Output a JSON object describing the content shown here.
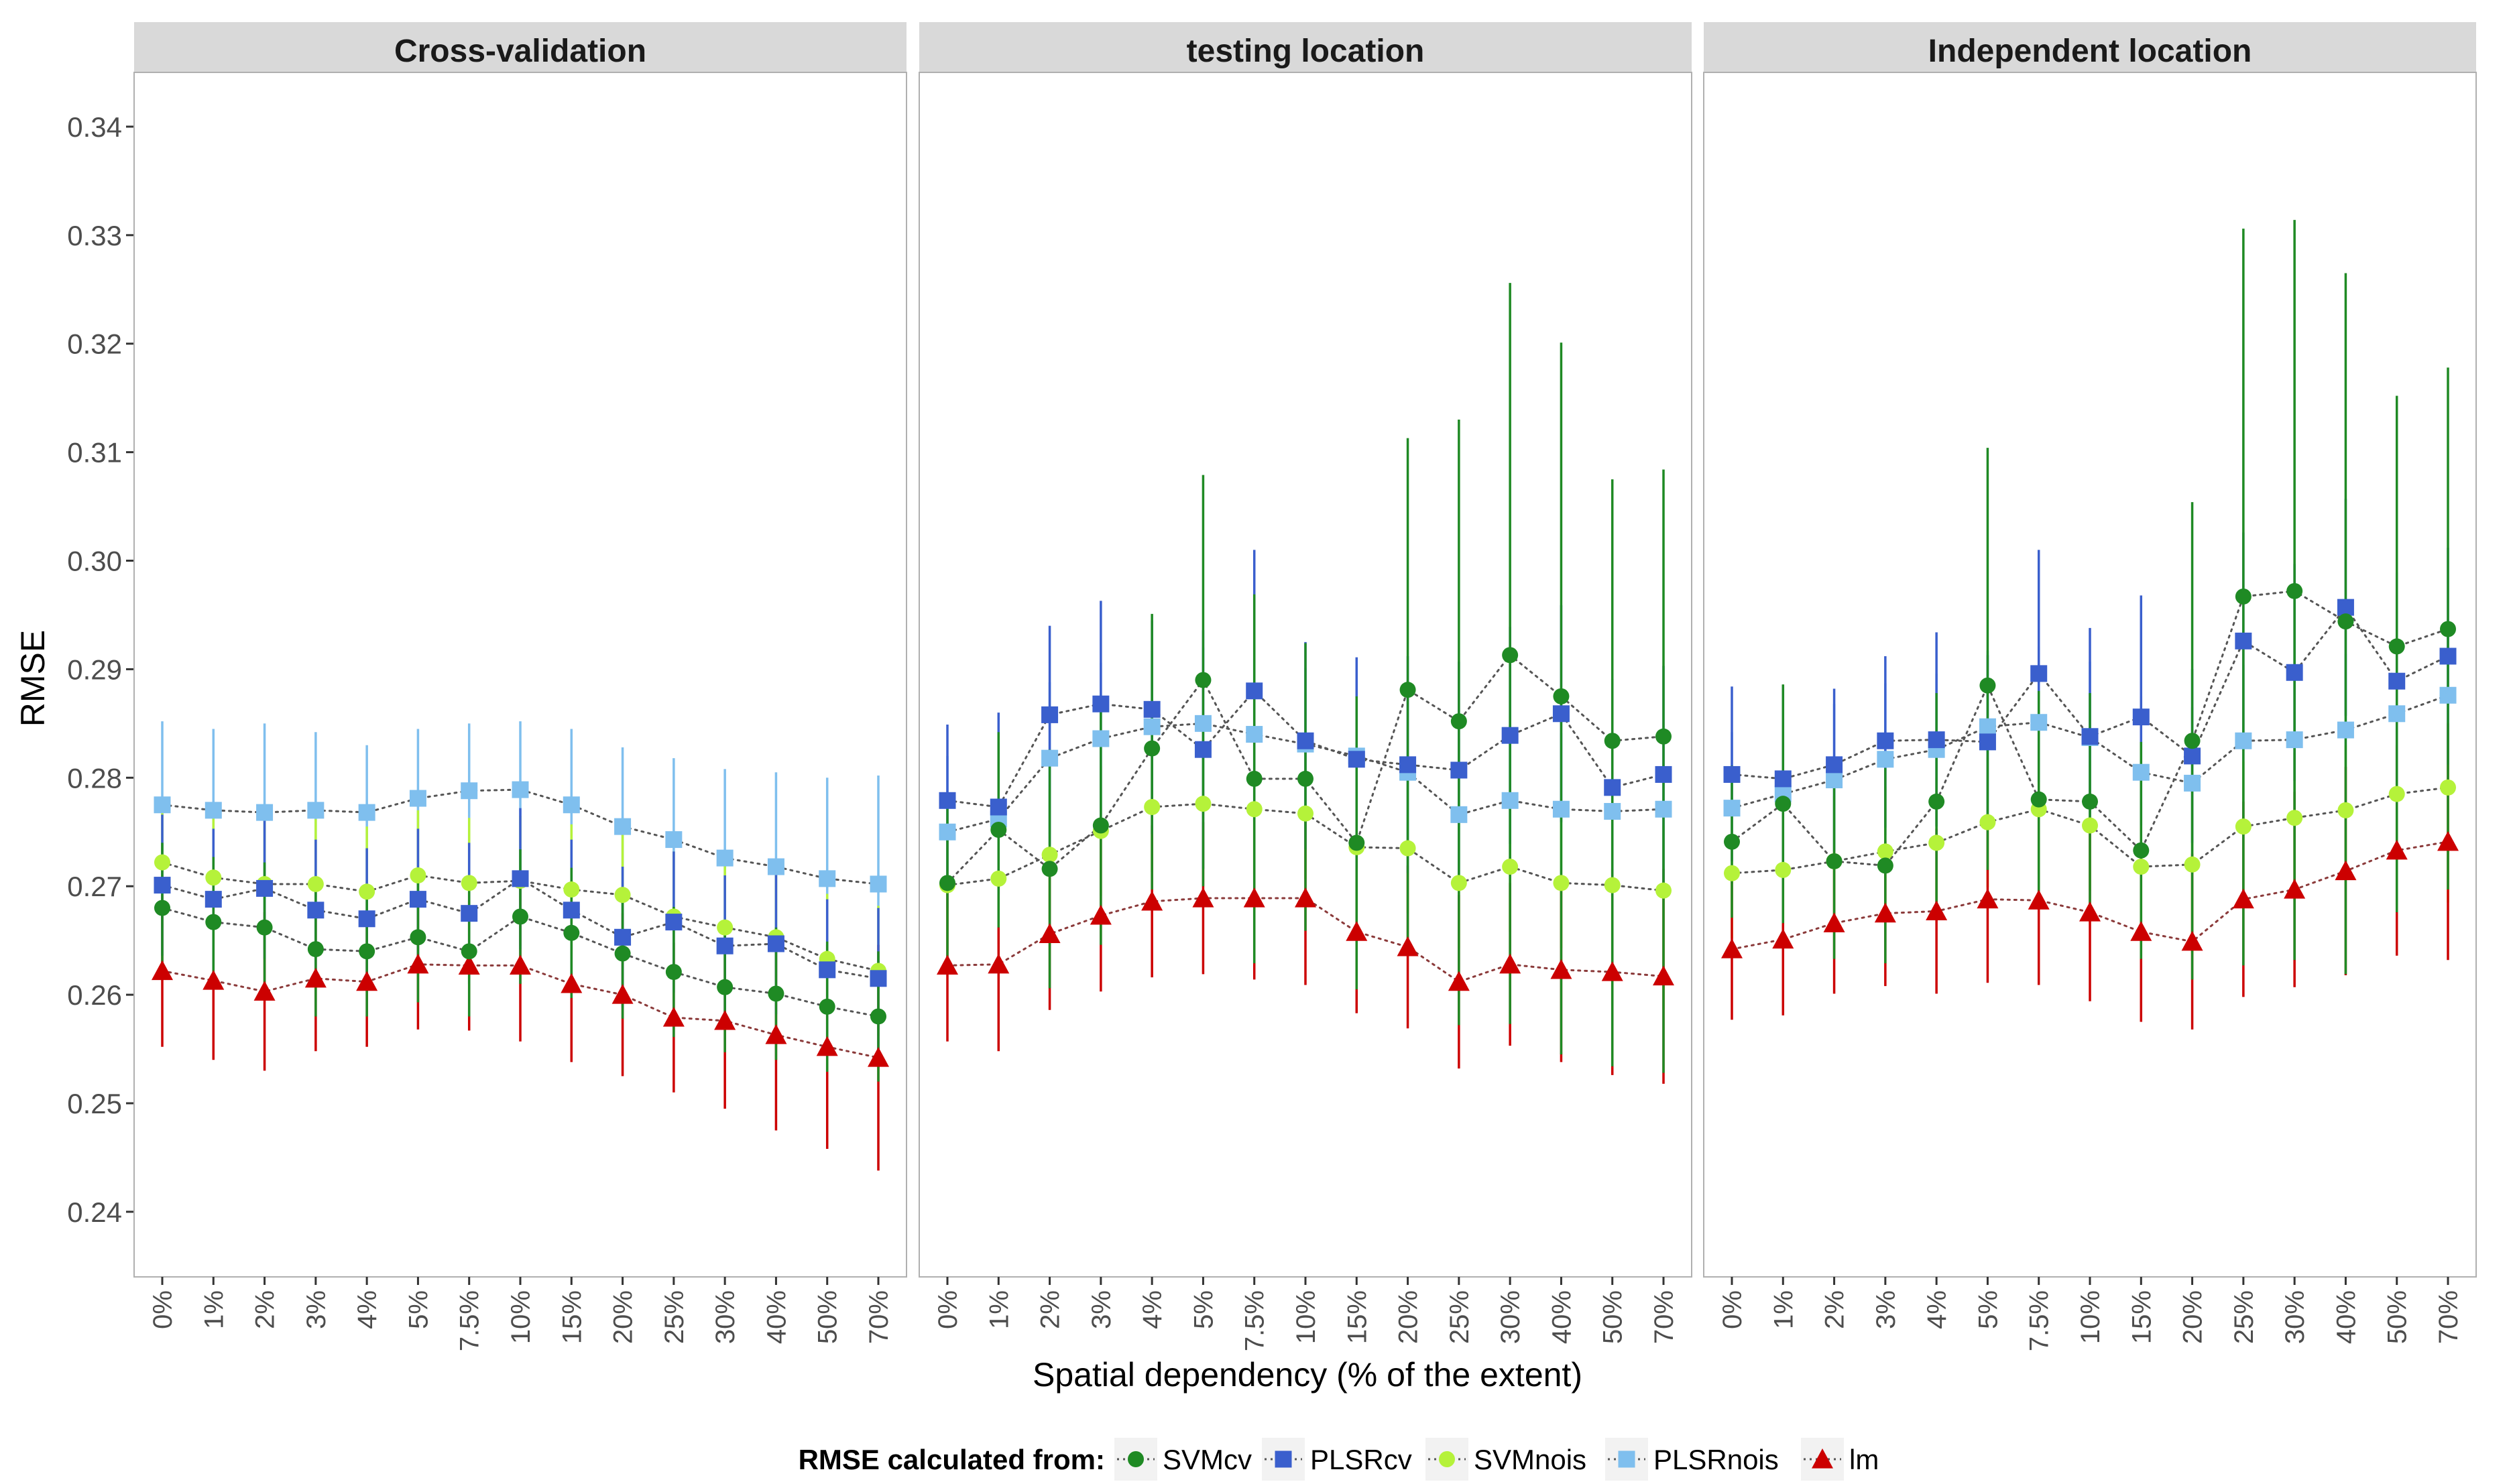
{
  "chart_data": {
    "type": "line",
    "ylabel": "RMSE",
    "xlabel": "Spatial dependency (% of the extent)",
    "ylim": [
      0.234,
      0.345
    ],
    "yticks": [
      "0.24",
      "0.25",
      "0.26",
      "0.27",
      "0.28",
      "0.29",
      "0.30",
      "0.31",
      "0.32",
      "0.33",
      "0.34"
    ],
    "ytick_values": [
      0.24,
      0.25,
      0.26,
      0.27,
      0.28,
      0.29,
      0.3,
      0.31,
      0.32,
      0.33,
      0.34
    ],
    "categories": [
      "0%",
      "1%",
      "2%",
      "3%",
      "4%",
      "5%",
      "7.5%",
      "10%",
      "15%",
      "20%",
      "25%",
      "30%",
      "40%",
      "50%",
      "70%"
    ],
    "legend": {
      "title": "RMSE calculated from:",
      "position": "bottom",
      "entries": [
        "SVMcv",
        "PLSRcv",
        "SVMnois",
        "PLSRnois",
        "lm"
      ]
    },
    "colors": {
      "SVMcv": "#1f8a24",
      "PLSRcv": "#3a5fcd",
      "SVMnois": "#b5f23a",
      "PLSRnois": "#7fbfee",
      "lm": "#cc0000",
      "strip_bg": "#d9d9d9",
      "panel_border": "#b0b0b0",
      "connector": "#555555"
    },
    "panels": [
      {
        "title": "Cross-validation",
        "series": [
          {
            "name": "SVMcv",
            "marker": "circle",
            "values": [
              0.268,
              0.2667,
              0.2662,
              0.2642,
              0.264,
              0.2653,
              0.264,
              0.2672,
              0.2657,
              0.2638,
              0.2621,
              0.2607,
              0.2601,
              0.2589,
              0.258
            ],
            "lower": [
              0.262,
              0.2605,
              0.2602,
              0.258,
              0.258,
              0.2593,
              0.258,
              0.261,
              0.2597,
              0.2578,
              0.2561,
              0.2547,
              0.254,
              0.2529,
              0.252
            ],
            "upper": [
              0.274,
              0.2727,
              0.2722,
              0.2704,
              0.27,
              0.2713,
              0.27,
              0.2734,
              0.2717,
              0.2698,
              0.2681,
              0.2667,
              0.2662,
              0.2649,
              0.264
            ]
          },
          {
            "name": "PLSRcv",
            "marker": "square",
            "values": [
              0.2701,
              0.2688,
              0.2698,
              0.2678,
              0.267,
              0.2688,
              0.2675,
              0.2707,
              0.2678,
              0.2653,
              0.2667,
              0.2645,
              0.2647,
              0.2623,
              0.2615
            ],
            "lower": [
              0.2636,
              0.2623,
              0.2633,
              0.2613,
              0.2605,
              0.2623,
              0.261,
              0.2642,
              0.2613,
              0.2588,
              0.2602,
              0.258,
              0.2582,
              0.2558,
              0.255
            ],
            "upper": [
              0.2766,
              0.2753,
              0.2763,
              0.2743,
              0.2735,
              0.2753,
              0.274,
              0.2772,
              0.2743,
              0.2718,
              0.2732,
              0.271,
              0.2712,
              0.2688,
              0.268
            ]
          },
          {
            "name": "SVMnois",
            "marker": "circle",
            "values": [
              0.2722,
              0.2708,
              0.2702,
              0.2702,
              0.2695,
              0.271,
              0.2703,
              0.2705,
              0.2697,
              0.2692,
              0.2672,
              0.2662,
              0.2653,
              0.2633,
              0.2622
            ],
            "lower": [
              0.2662,
              0.2648,
              0.2642,
              0.2642,
              0.2635,
              0.265,
              0.2643,
              0.2645,
              0.2637,
              0.2632,
              0.2612,
              0.2602,
              0.2593,
              0.2573,
              0.2562
            ],
            "upper": [
              0.2782,
              0.2768,
              0.2762,
              0.2762,
              0.2755,
              0.277,
              0.2763,
              0.2765,
              0.2757,
              0.2752,
              0.2732,
              0.2722,
              0.2713,
              0.2693,
              0.2682
            ]
          },
          {
            "name": "PLSRnois",
            "marker": "square",
            "values": [
              0.2775,
              0.277,
              0.2768,
              0.277,
              0.2768,
              0.2781,
              0.2788,
              0.2789,
              0.2775,
              0.2755,
              0.2743,
              0.2726,
              0.2718,
              0.2707,
              0.2702
            ],
            "lower": [
              0.2695,
              0.269,
              0.2688,
              0.269,
              0.2688,
              0.2701,
              0.2708,
              0.2709,
              0.2695,
              0.2675,
              0.2663,
              0.2646,
              0.2638,
              0.2627,
              0.2622
            ],
            "upper": [
              0.2852,
              0.2845,
              0.285,
              0.2842,
              0.283,
              0.2845,
              0.285,
              0.2852,
              0.2845,
              0.2828,
              0.2818,
              0.2808,
              0.2805,
              0.28,
              0.2802
            ]
          },
          {
            "name": "lm",
            "marker": "triangle",
            "values": [
              0.2622,
              0.2613,
              0.2603,
              0.2615,
              0.2612,
              0.2628,
              0.2627,
              0.2627,
              0.261,
              0.26,
              0.2579,
              0.2576,
              0.2563,
              0.2552,
              0.2542
            ],
            "lower": [
              0.2552,
              0.254,
              0.253,
              0.2548,
              0.2552,
              0.2568,
              0.2567,
              0.2557,
              0.2538,
              0.2525,
              0.251,
              0.2495,
              0.2475,
              0.2458,
              0.2438
            ],
            "upper": [
              0.2692,
              0.2686,
              0.2676,
              0.2682,
              0.2672,
              0.2688,
              0.2687,
              0.2697,
              0.2682,
              0.2675,
              0.2648,
              0.2657,
              0.2651,
              0.2646,
              0.2646
            ]
          }
        ]
      },
      {
        "title": "testing location",
        "series": [
          {
            "name": "SVMcv",
            "marker": "circle",
            "values": [
              0.2703,
              0.2752,
              0.2716,
              0.2756,
              0.2827,
              0.289,
              0.2799,
              0.2799,
              0.274,
              0.2881,
              0.2852,
              0.2913,
              0.2875,
              0.2834,
              0.2838
            ],
            "lower": [
              0.2633,
              0.2662,
              0.2606,
              0.2646,
              0.2697,
              0.27,
              0.2629,
              0.2659,
              0.2605,
              0.2651,
              0.2572,
              0.2573,
              0.2545,
              0.2534,
              0.2528
            ],
            "upper": [
              0.2773,
              0.2842,
              0.2826,
              0.2866,
              0.2951,
              0.3079,
              0.2969,
              0.2924,
              0.2875,
              0.3113,
              0.313,
              0.3256,
              0.3201,
              0.3075,
              0.3084
            ]
          },
          {
            "name": "PLSRcv",
            "marker": "square",
            "values": [
              0.2779,
              0.2773,
              0.2858,
              0.2868,
              0.2863,
              0.2826,
              0.288,
              0.2834,
              0.2817,
              0.2812,
              0.2807,
              0.2839,
              0.2859,
              0.2791,
              0.2803
            ],
            "lower": [
              0.2709,
              0.2693,
              0.2738,
              0.2748,
              0.2748,
              0.2716,
              0.276,
              0.2734,
              0.2717,
              0.2712,
              0.2707,
              0.2739,
              0.2759,
              0.2691,
              0.2703
            ],
            "upper": [
              0.2849,
              0.286,
              0.294,
              0.2963,
              0.2945,
              0.2936,
              0.301,
              0.2925,
              0.2911,
              0.2912,
              0.2907,
              0.2939,
              0.2959,
              0.2891,
              0.2903
            ]
          },
          {
            "name": "SVMnois",
            "marker": "circle",
            "values": [
              0.2701,
              0.2707,
              0.2729,
              0.2751,
              0.2773,
              0.2776,
              0.2771,
              0.2767,
              0.2736,
              0.2735,
              0.2703,
              0.2718,
              0.2703,
              0.2701,
              0.2696
            ],
            "lower": [
              0.2641,
              0.2647,
              0.2669,
              0.2691,
              0.2713,
              0.2716,
              0.2711,
              0.2707,
              0.2676,
              0.2675,
              0.2643,
              0.2658,
              0.2643,
              0.2591,
              0.2586
            ],
            "upper": [
              0.2761,
              0.2767,
              0.2789,
              0.2811,
              0.2833,
              0.2836,
              0.2831,
              0.2827,
              0.2796,
              0.2795,
              0.2763,
              0.2778,
              0.2763,
              0.2761,
              0.2756
            ]
          },
          {
            "name": "PLSRnois",
            "marker": "square",
            "values": [
              0.275,
              0.2762,
              0.2818,
              0.2836,
              0.2847,
              0.285,
              0.284,
              0.2831,
              0.282,
              0.2805,
              0.2766,
              0.2779,
              0.2771,
              0.2769,
              0.2771
            ],
            "lower": [
              0.268,
              0.2692,
              0.2748,
              0.2766,
              0.2777,
              0.278,
              0.277,
              0.2761,
              0.275,
              0.2735,
              0.2696,
              0.2709,
              0.2701,
              0.2699,
              0.2701
            ],
            "upper": [
              0.282,
              0.2832,
              0.2888,
              0.2906,
              0.2917,
              0.292,
              0.291,
              0.2901,
              0.289,
              0.2875,
              0.2836,
              0.2849,
              0.2841,
              0.2839,
              0.2841
            ]
          },
          {
            "name": "lm",
            "marker": "triangle",
            "values": [
              0.2627,
              0.2628,
              0.2656,
              0.2673,
              0.2686,
              0.2689,
              0.2689,
              0.2689,
              0.2658,
              0.2644,
              0.2612,
              0.2628,
              0.2623,
              0.2621,
              0.2617
            ],
            "lower": [
              0.2557,
              0.2548,
              0.2586,
              0.2603,
              0.2616,
              0.2619,
              0.2614,
              0.2609,
              0.2583,
              0.2569,
              0.2532,
              0.2553,
              0.2538,
              0.2526,
              0.2518
            ],
            "upper": [
              0.2697,
              0.2708,
              0.2726,
              0.2743,
              0.2756,
              0.2759,
              0.2764,
              0.2769,
              0.2733,
              0.2719,
              0.2692,
              0.2703,
              0.2708,
              0.2716,
              0.2716
            ]
          }
        ]
      },
      {
        "title": "Independent location",
        "series": [
          {
            "name": "SVMcv",
            "marker": "circle",
            "values": [
              0.2741,
              0.2776,
              0.2723,
              0.2719,
              0.2778,
              0.2885,
              0.278,
              0.2778,
              0.2733,
              0.2834,
              0.2967,
              0.2972,
              0.2944,
              0.2921,
              0.2937
            ],
            "lower": [
              0.2671,
              0.2666,
              0.2633,
              0.2629,
              0.2678,
              0.2715,
              0.2679,
              0.2678,
              0.2633,
              0.2614,
              0.2627,
              0.2632,
              0.2619,
              0.2676,
              0.2697
            ],
            "upper": [
              0.2811,
              0.2886,
              0.2813,
              0.2809,
              0.2878,
              0.3104,
              0.288,
              0.2878,
              0.2833,
              0.3054,
              0.3306,
              0.3314,
              0.3265,
              0.3152,
              0.3178
            ]
          },
          {
            "name": "PLSRcv",
            "marker": "square",
            "values": [
              0.2803,
              0.2799,
              0.2812,
              0.2834,
              0.2835,
              0.2833,
              0.2896,
              0.2838,
              0.2856,
              0.282,
              0.2926,
              0.2897,
              0.2957,
              0.2889,
              0.2912
            ],
            "lower": [
              0.2723,
              0.2719,
              0.2732,
              0.2754,
              0.2755,
              0.2753,
              0.2796,
              0.2758,
              0.2756,
              0.274,
              0.2826,
              0.2797,
              0.2857,
              0.2789,
              0.2812
            ],
            "upper": [
              0.2884,
              0.2885,
              0.2882,
              0.2912,
              0.2934,
              0.2913,
              0.301,
              0.2938,
              0.2968,
              0.29,
              0.3026,
              0.2997,
              0.3057,
              0.2989,
              0.3012
            ]
          },
          {
            "name": "SVMnois",
            "marker": "circle",
            "values": [
              0.2712,
              0.2715,
              0.2723,
              0.2732,
              0.274,
              0.2759,
              0.2771,
              0.2756,
              0.2718,
              0.272,
              0.2755,
              0.2763,
              0.277,
              0.2785,
              0.2791
            ],
            "lower": [
              0.2652,
              0.2655,
              0.2663,
              0.2672,
              0.268,
              0.2699,
              0.2711,
              0.2696,
              0.2636,
              0.2638,
              0.2695,
              0.2703,
              0.271,
              0.2683,
              0.2685
            ],
            "upper": [
              0.2772,
              0.2775,
              0.2783,
              0.2792,
              0.28,
              0.2819,
              0.2831,
              0.2816,
              0.2778,
              0.278,
              0.2815,
              0.2823,
              0.283,
              0.2845,
              0.2851
            ]
          },
          {
            "name": "PLSRnois",
            "marker": "square",
            "values": [
              0.2772,
              0.2785,
              0.2798,
              0.2817,
              0.2826,
              0.2847,
              0.2851,
              0.2837,
              0.2805,
              0.2795,
              0.2834,
              0.2835,
              0.2844,
              0.2859,
              0.2876
            ],
            "lower": [
              0.2702,
              0.2715,
              0.2728,
              0.2747,
              0.2756,
              0.2777,
              0.2781,
              0.2767,
              0.2735,
              0.2725,
              0.2764,
              0.2765,
              0.2774,
              0.2789,
              0.2806
            ],
            "upper": [
              0.2842,
              0.2855,
              0.2868,
              0.2887,
              0.2896,
              0.2917,
              0.2921,
              0.2907,
              0.2875,
              0.2865,
              0.2904,
              0.2905,
              0.2914,
              0.2929,
              0.2946
            ]
          },
          {
            "name": "lm",
            "marker": "triangle",
            "values": [
              0.2642,
              0.2651,
              0.2666,
              0.2675,
              0.2677,
              0.2688,
              0.2687,
              0.2676,
              0.2658,
              0.2649,
              0.2688,
              0.2697,
              0.2714,
              0.2733,
              0.2741
            ],
            "lower": [
              0.2577,
              0.2581,
              0.2601,
              0.2608,
              0.2601,
              0.2611,
              0.2609,
              0.2594,
              0.2575,
              0.2568,
              0.2598,
              0.2607,
              0.2618,
              0.2636,
              0.2632
            ],
            "upper": [
              0.2707,
              0.2721,
              0.2731,
              0.2742,
              0.2753,
              0.2765,
              0.2765,
              0.2758,
              0.2741,
              0.273,
              0.2778,
              0.2787,
              0.281,
              0.283,
              0.285
            ]
          }
        ]
      }
    ]
  }
}
